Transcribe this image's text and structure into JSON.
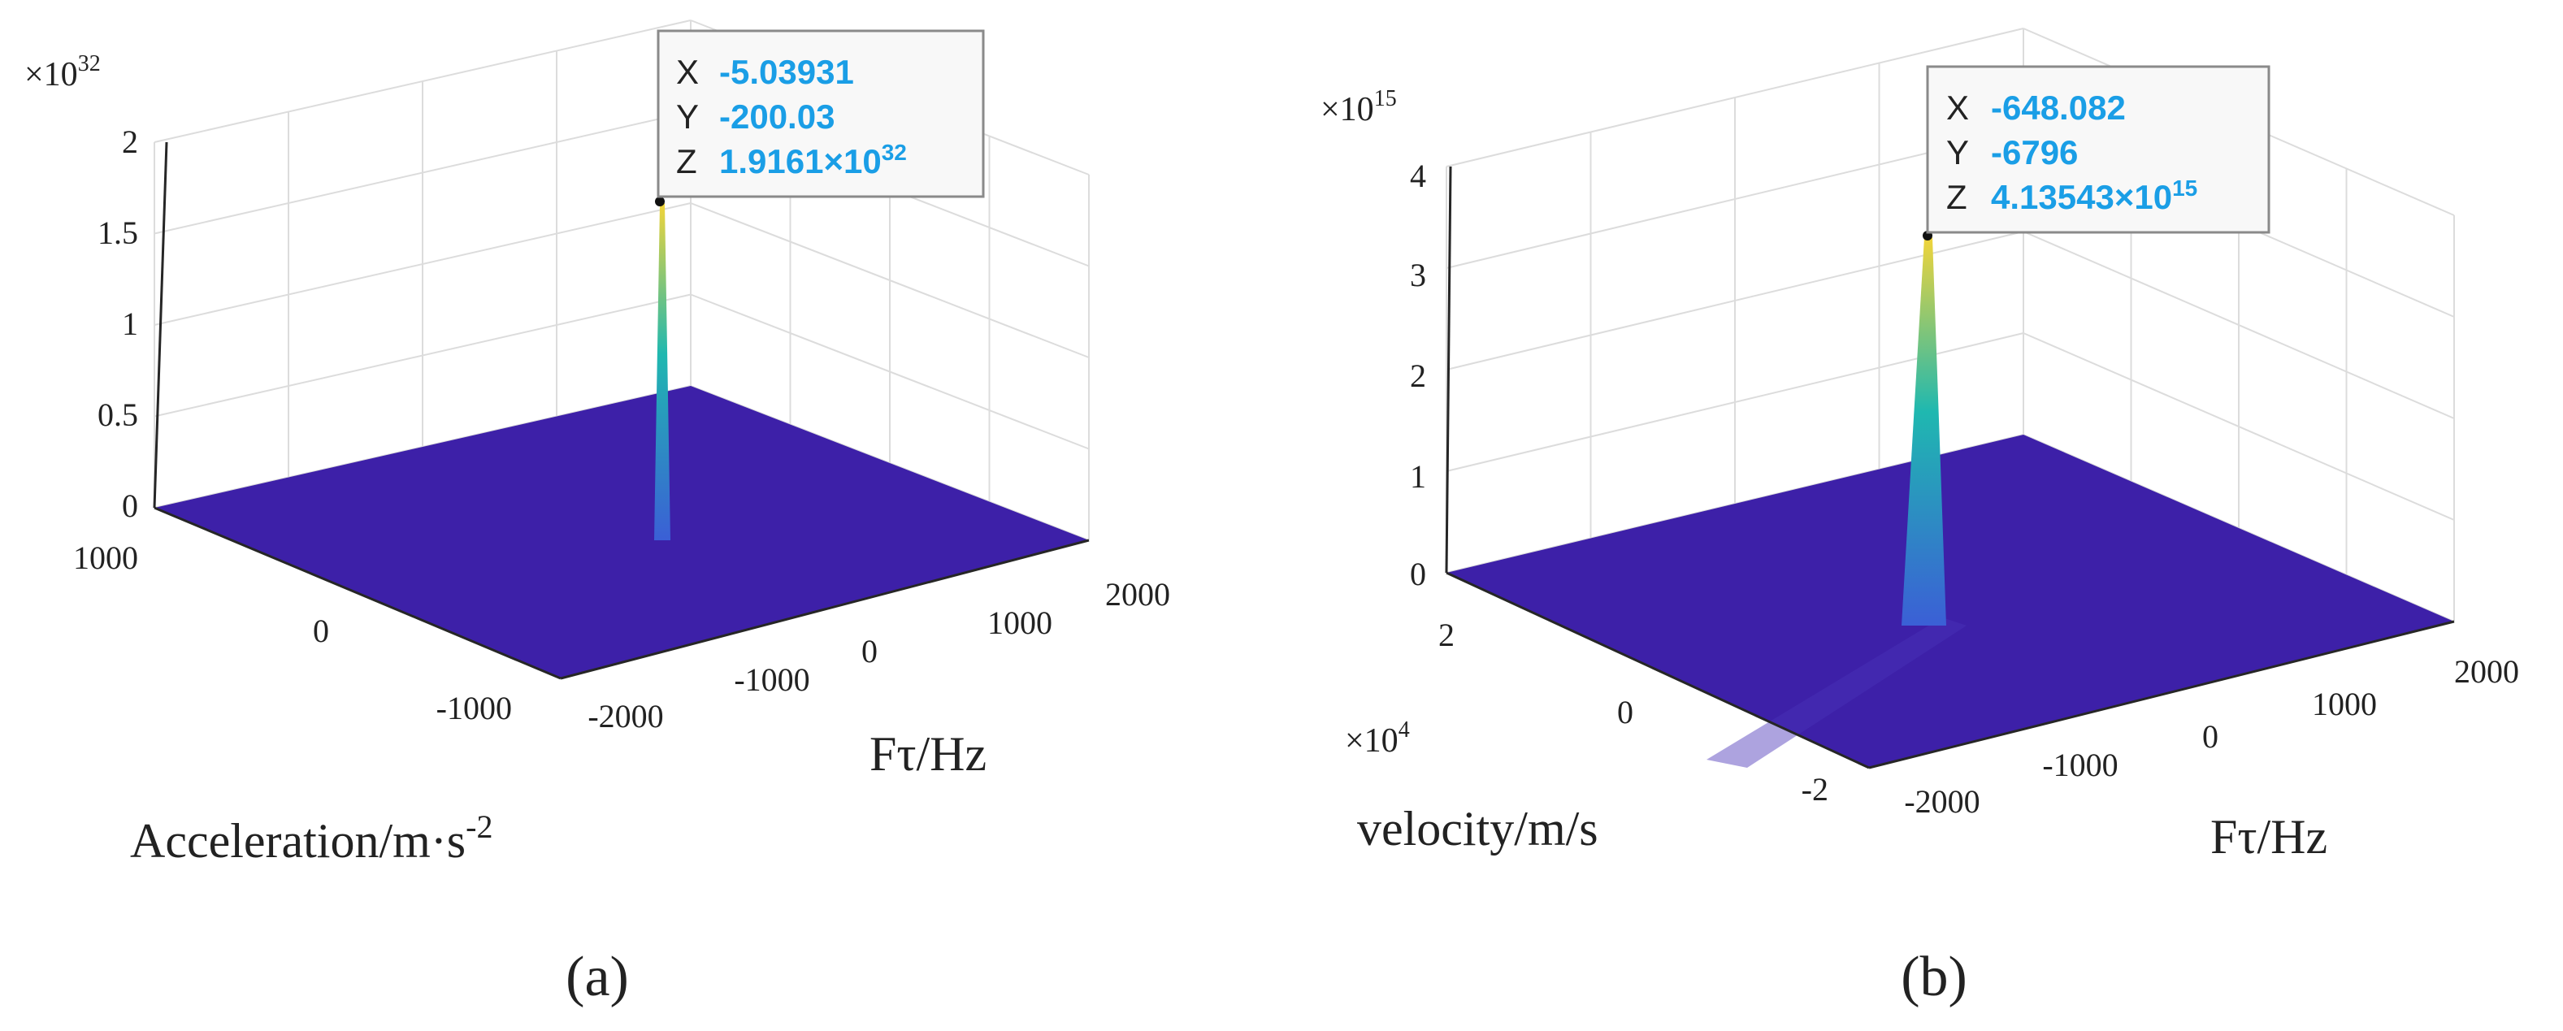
{
  "colors": {
    "surface": "#3d20a8",
    "surface_edge": "#4a33b8",
    "peak_low": "#3b5fd6",
    "peak_mid": "#1fb8b0",
    "peak_high": "#f1d43a",
    "tip_value": "#1a9ee6",
    "axis": "#262626",
    "grid": "#dcdcdc"
  },
  "chart_data": [
    {
      "type": "surface",
      "caption": "(a)",
      "z_exponent_base": "×10",
      "z_exponent_power": "32",
      "z_ticks": [
        "0",
        "0.5",
        "1",
        "1.5",
        "2"
      ],
      "zlim": [
        0,
        2
      ],
      "x_ticks": [
        "-2000",
        "-1000",
        "0",
        "1000",
        "2000"
      ],
      "y_ticks": [
        "-1000",
        "0",
        "1000"
      ],
      "xlabel": "Fτ/Hz",
      "ylabel_base": "Acceleration/m·s",
      "ylabel_sup": "-2",
      "peak": {
        "x": -5.03931,
        "y": -200.03,
        "z": 1.9161e+32
      },
      "datatip": [
        {
          "key": "X",
          "value": "-5.03931",
          "sup": ""
        },
        {
          "key": "Y",
          "value": "-200.03",
          "sup": ""
        },
        {
          "key": "Z",
          "value": "1.9161×10",
          "sup": "32"
        }
      ]
    },
    {
      "type": "surface",
      "caption": "(b)",
      "z_exponent_base": "×10",
      "z_exponent_power": "15",
      "z_ticks": [
        "0",
        "1",
        "2",
        "3",
        "4"
      ],
      "zlim": [
        0,
        4
      ],
      "x_ticks": [
        "-2000",
        "-1000",
        "0",
        "1000",
        "2000"
      ],
      "y_ticks": [
        "-2",
        "0",
        "2"
      ],
      "y_exponent_base": "×10",
      "y_exponent_power": "4",
      "xlabel": "Fτ/Hz",
      "ylabel_base": "velocity/m/s",
      "ylabel_sup": "",
      "peak": {
        "x": -648.082,
        "y": -6796,
        "z": 4135430000000000.0
      },
      "datatip": [
        {
          "key": "X",
          "value": "-648.082",
          "sup": ""
        },
        {
          "key": "Y",
          "value": "-6796",
          "sup": ""
        },
        {
          "key": "Z",
          "value": "4.13543×10",
          "sup": "15"
        }
      ]
    }
  ]
}
